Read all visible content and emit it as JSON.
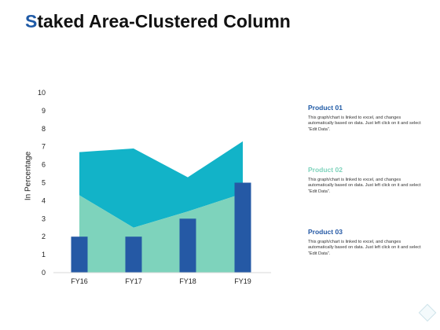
{
  "title": {
    "first_letter": "S",
    "rest": "taked Area-Clustered Column"
  },
  "colors": {
    "title_accent": "#1F5AA6",
    "series1_area": "#7ED3BC",
    "series2_area": "#12B3C8",
    "series3_column": "#2559A5"
  },
  "legend": [
    {
      "title": "Product 01",
      "color": "#1F5AA6",
      "desc": "This graph/chart is linked to excel, and changes automatically based on data. Just left click on it and select “Edit Data”."
    },
    {
      "title": "Product 02",
      "color": "#7ED3BC",
      "desc": "This graph/chart is linked to excel, and changes automatically based on data. Just left click on it and select “Edit Data”."
    },
    {
      "title": "Product 03",
      "color": "#2559A5",
      "desc": "This graph/chart is linked to excel, and changes automatically based on data. Just left click on it and select “Edit Data”."
    }
  ],
  "chart_data": {
    "type": "area",
    "ylabel": "In Percentage",
    "ylim": [
      0,
      10
    ],
    "yticks": [
      0,
      1,
      2,
      3,
      4,
      5,
      6,
      7,
      8,
      9,
      10
    ],
    "categories": [
      "FY16",
      "FY17",
      "FY18",
      "FY19"
    ],
    "grid": false,
    "legend_position": "right",
    "series": [
      {
        "kind": "area",
        "values": [
          4.3,
          2.5,
          3.4,
          4.4
        ]
      },
      {
        "kind": "area",
        "stacked_top": [
          6.7,
          6.9,
          5.3,
          7.3
        ]
      },
      {
        "kind": "column",
        "values": [
          2,
          2,
          3,
          5
        ]
      }
    ]
  },
  "icons": {
    "corner": "diamond-icon"
  }
}
